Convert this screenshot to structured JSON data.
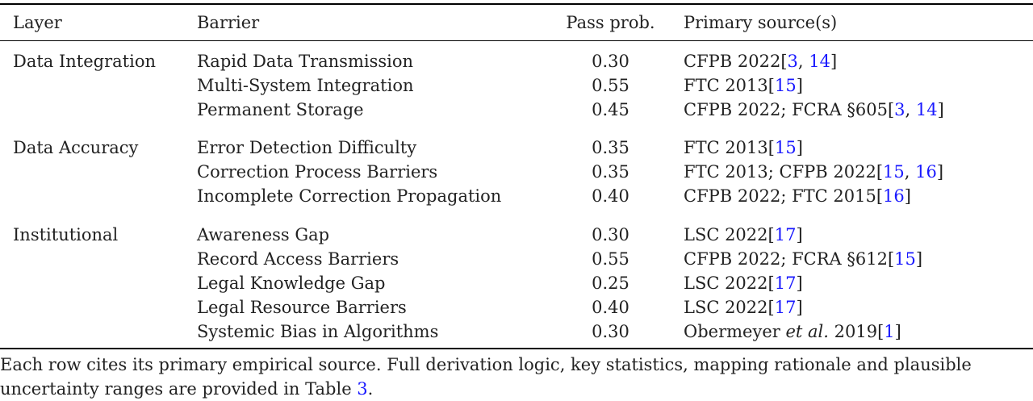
{
  "table": {
    "headers": {
      "layer": "Layer",
      "barrier": "Barrier",
      "pass_prob": "Pass prob.",
      "sources": "Primary source(s)"
    },
    "groups": [
      {
        "layer": "Data Integration",
        "rows": [
          {
            "barrier": "Rapid Data Transmission",
            "prob": "0.30",
            "source": [
              {
                "t": "CFPB 2022["
              },
              {
                "t": "3",
                "c": 1
              },
              {
                "t": ", "
              },
              {
                "t": "14",
                "c": 1
              },
              {
                "t": "]"
              }
            ]
          },
          {
            "barrier": "Multi-System Integration",
            "prob": "0.55",
            "source": [
              {
                "t": "FTC 2013["
              },
              {
                "t": "15",
                "c": 1
              },
              {
                "t": "]"
              }
            ]
          },
          {
            "barrier": "Permanent Storage",
            "prob": "0.45",
            "source": [
              {
                "t": "CFPB 2022; FCRA §605["
              },
              {
                "t": "3",
                "c": 1
              },
              {
                "t": ", "
              },
              {
                "t": "14",
                "c": 1
              },
              {
                "t": "]"
              }
            ]
          }
        ]
      },
      {
        "layer": "Data Accuracy",
        "rows": [
          {
            "barrier": "Error Detection Difficulty",
            "prob": "0.35",
            "source": [
              {
                "t": "FTC 2013["
              },
              {
                "t": "15",
                "c": 1
              },
              {
                "t": "]"
              }
            ]
          },
          {
            "barrier": "Correction Process Barriers",
            "prob": "0.35",
            "source": [
              {
                "t": "FTC 2013; CFPB 2022["
              },
              {
                "t": "15",
                "c": 1
              },
              {
                "t": ", "
              },
              {
                "t": "16",
                "c": 1
              },
              {
                "t": "]"
              }
            ]
          },
          {
            "barrier": "Incomplete Correction Propagation",
            "prob": "0.40",
            "source": [
              {
                "t": "CFPB 2022; FTC 2015["
              },
              {
                "t": "16",
                "c": 1
              },
              {
                "t": "]"
              }
            ]
          }
        ]
      },
      {
        "layer": "Institutional",
        "rows": [
          {
            "barrier": "Awareness Gap",
            "prob": "0.30",
            "source": [
              {
                "t": "LSC 2022["
              },
              {
                "t": "17",
                "c": 1
              },
              {
                "t": "]"
              }
            ]
          },
          {
            "barrier": "Record Access Barriers",
            "prob": "0.55",
            "source": [
              {
                "t": "CFPB 2022; FCRA §612["
              },
              {
                "t": "15",
                "c": 1
              },
              {
                "t": "]"
              }
            ]
          },
          {
            "barrier": "Legal Knowledge Gap",
            "prob": "0.25",
            "source": [
              {
                "t": "LSC 2022["
              },
              {
                "t": "17",
                "c": 1
              },
              {
                "t": "]"
              }
            ]
          },
          {
            "barrier": "Legal Resource Barriers",
            "prob": "0.40",
            "source": [
              {
                "t": "LSC 2022["
              },
              {
                "t": "17",
                "c": 1
              },
              {
                "t": "]"
              }
            ]
          },
          {
            "barrier": "Systemic Bias in Algorithms",
            "prob": "0.30",
            "source": [
              {
                "t": "Obermeyer "
              },
              {
                "t": "et al.",
                "i": 1
              },
              {
                "t": " 2019["
              },
              {
                "t": "1",
                "c": 1
              },
              {
                "t": "]"
              }
            ]
          }
        ]
      }
    ]
  },
  "note": [
    {
      "t": "Each row cites its primary empirical source. Full derivation logic, key statistics, mapping rationale and plausible uncertainty ranges are provided in Table "
    },
    {
      "t": "3",
      "c": 1
    },
    {
      "t": "."
    }
  ]
}
